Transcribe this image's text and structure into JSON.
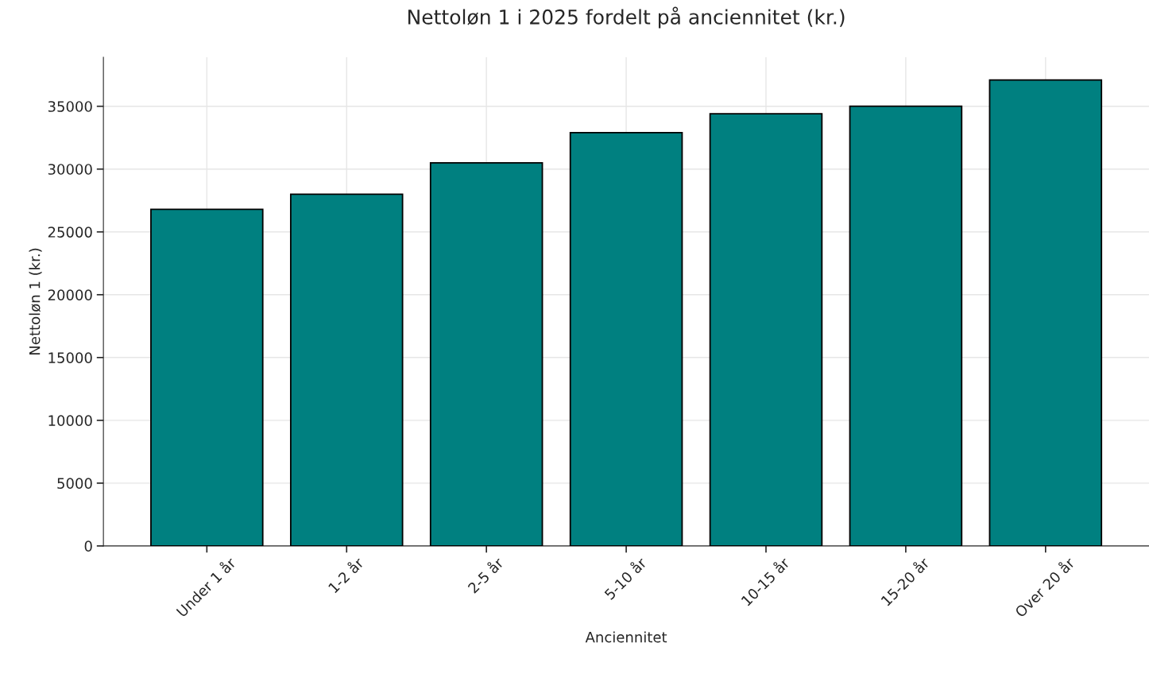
{
  "chart_data": {
    "type": "bar",
    "title": "Nettoløn 1 i 2025 fordelt på anciennitet (kr.)",
    "xlabel": "Anciennitet",
    "ylabel": "Nettoløn 1 (kr.)",
    "categories": [
      "Under 1 år",
      "1-2 år",
      "2-5 år",
      "5-10 år",
      "10-15 år",
      "15-20 år",
      "Over 20 år"
    ],
    "values": [
      26800,
      28000,
      30500,
      32900,
      34400,
      35000,
      37100
    ],
    "color": "#008080",
    "ylim": [
      0,
      38900
    ],
    "yticks": [
      0,
      5000,
      10000,
      15000,
      20000,
      25000,
      30000,
      35000
    ],
    "grid": true
  }
}
